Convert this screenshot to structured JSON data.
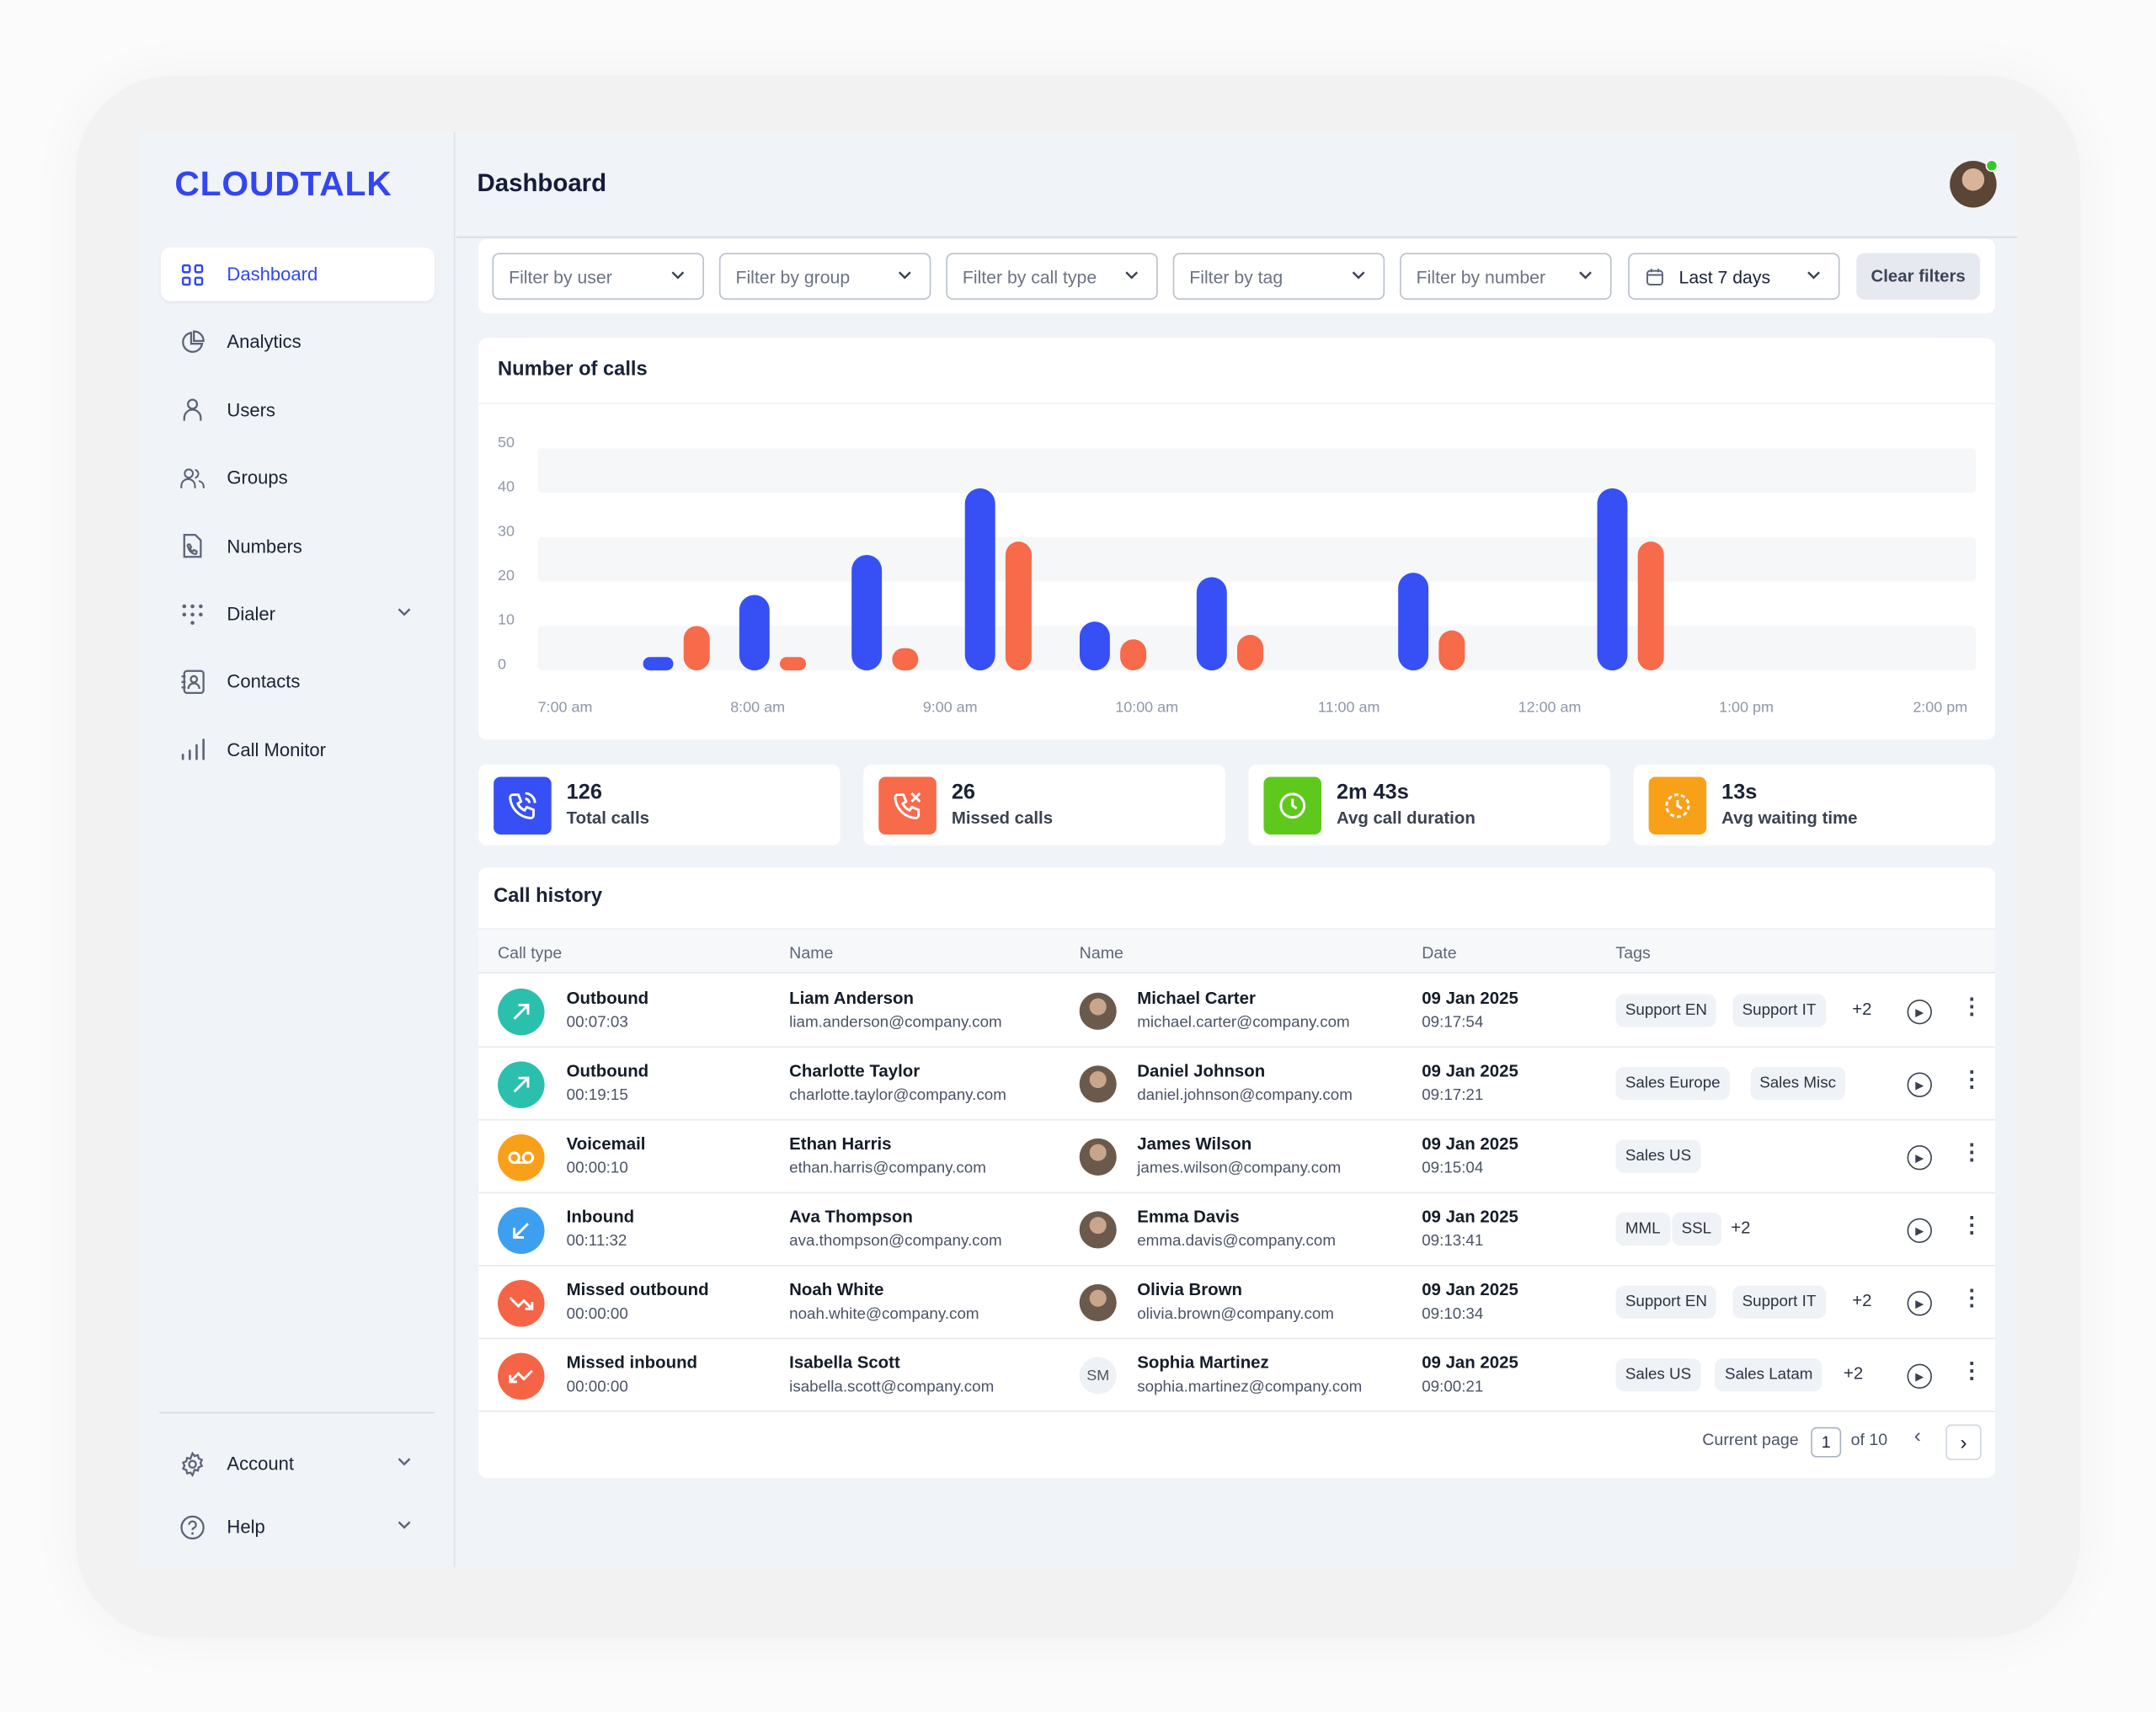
{
  "app": {
    "logo": "CLOUDTALK",
    "page_title": "Dashboard",
    "user_online": true
  },
  "sidebar": {
    "items": [
      {
        "label": "Dashboard",
        "icon": "grid-icon",
        "active": true
      },
      {
        "label": "Analytics",
        "icon": "pie-chart-icon"
      },
      {
        "label": "Users",
        "icon": "user-icon"
      },
      {
        "label": "Groups",
        "icon": "users-icon"
      },
      {
        "label": "Numbers",
        "icon": "phone-document-icon"
      },
      {
        "label": "Dialer",
        "icon": "dialpad-icon",
        "expandable": true
      },
      {
        "label": "Contacts",
        "icon": "contact-book-icon"
      },
      {
        "label": "Call Monitor",
        "icon": "bar-signal-icon"
      }
    ],
    "bottom": [
      {
        "label": "Account",
        "icon": "gear-icon",
        "expandable": true
      },
      {
        "label": "Help",
        "icon": "help-circle-icon",
        "expandable": true
      }
    ]
  },
  "filters": {
    "selects": [
      "Filter by user",
      "Filter by group",
      "Filter by call type",
      "Filter by tag",
      "Filter by number"
    ],
    "date_range": "Last 7 days",
    "clear_label": "Clear filters"
  },
  "chart_data": {
    "type": "bar",
    "title": "Number of calls",
    "x_tick_labels": [
      "7:00 am",
      "8:00 am",
      "9:00 am",
      "10:00 am",
      "11:00 am",
      "12:00 am",
      "1:00 pm",
      "2:00 pm"
    ],
    "x": [
      "7:35",
      "8:05",
      "8:40",
      "9:15",
      "9:50",
      "10:25",
      "11:25",
      "12:25"
    ],
    "series": [
      {
        "values": [
          3,
          17,
          26,
          41,
          11,
          21,
          22,
          41
        ],
        "color": "#3650f5"
      },
      {
        "values": [
          10,
          3,
          5,
          29,
          7,
          8,
          9,
          29
        ],
        "color": "#f76a4a"
      }
    ],
    "y_ticks": [
      0,
      10,
      20,
      30,
      40,
      50
    ],
    "ylim": [
      0,
      50
    ],
    "grid": "alternating bands"
  },
  "stats": [
    {
      "value": "126",
      "label": "Total calls",
      "icon": "phone-call-icon",
      "color": "#3650f5"
    },
    {
      "value": "26",
      "label": "Missed calls",
      "icon": "phone-missed-icon",
      "color": "#f76a4a"
    },
    {
      "value": "2m 43s",
      "label": "Avg call duration",
      "icon": "clock-icon",
      "color": "#5ec91c"
    },
    {
      "value": "13s",
      "label": "Avg waiting time",
      "icon": "timer-icon",
      "color": "#f9a019"
    }
  ],
  "history": {
    "title": "Call history",
    "columns": [
      "Call type",
      "Name",
      "Name",
      "Date",
      "Tags"
    ],
    "rows": [
      {
        "type": "Outbound",
        "duration": "00:07:03",
        "type_color": "#2bbfae",
        "type_icon": "arrow-up-right-icon",
        "agent": "Liam Anderson",
        "agent_email": "liam.anderson@company.com",
        "contact": "Michael Carter",
        "contact_email": "michael.carter@company.com",
        "date": "09 Jan 2025",
        "time": "09:17:54",
        "tags": [
          "Support EN",
          "Support IT"
        ],
        "more": "+2"
      },
      {
        "type": "Outbound",
        "duration": "00:19:15",
        "type_color": "#2bbfae",
        "type_icon": "arrow-up-right-icon",
        "agent": "Charlotte Taylor",
        "agent_email": "charlotte.taylor@company.com",
        "contact": "Daniel Johnson",
        "contact_email": "daniel.johnson@company.com",
        "date": "09 Jan 2025",
        "time": "09:17:21",
        "tags": [
          "Sales Europe",
          "Sales Misc"
        ]
      },
      {
        "type": "Voicemail",
        "duration": "00:00:10",
        "type_color": "#f9a01b",
        "type_icon": "voicemail-icon",
        "agent": "Ethan Harris",
        "agent_email": "ethan.harris@company.com",
        "contact": "James Wilson",
        "contact_email": "james.wilson@company.com",
        "date": "09 Jan 2025",
        "time": "09:15:04",
        "tags": [
          "Sales US"
        ]
      },
      {
        "type": "Inbound",
        "duration": "00:11:32",
        "type_color": "#3d9ff0",
        "type_icon": "arrow-down-left-icon",
        "agent": "Ava Thompson",
        "agent_email": "ava.thompson@company.com",
        "contact": "Emma Davis",
        "contact_email": "emma.davis@company.com",
        "date": "09 Jan 2025",
        "time": "09:13:41",
        "tags": [
          "MML",
          "SSL"
        ],
        "more": "+2"
      },
      {
        "type": "Missed outbound",
        "duration": "00:00:00",
        "type_color": "#f56447",
        "type_icon": "missed-outbound-icon",
        "agent": "Noah White",
        "agent_email": "noah.white@company.com",
        "contact": "Olivia Brown",
        "contact_email": "olivia.brown@company.com",
        "date": "09 Jan 2025",
        "time": "09:10:34",
        "tags": [
          "Support EN",
          "Support IT"
        ],
        "more": "+2"
      },
      {
        "type": "Missed inbound",
        "duration": "00:00:00",
        "type_color": "#f56447",
        "type_icon": "missed-inbound-icon",
        "agent": "Isabella Scott",
        "agent_email": "isabella.scott@company.com",
        "contact": "Sophia Martinez",
        "contact_initials": "SM",
        "contact_email": "sophia.martinez@company.com",
        "date": "09 Jan 2025",
        "time": "09:00:21",
        "tags": [
          "Sales US",
          "Sales Latam"
        ],
        "more": "+2"
      }
    ],
    "pagination": {
      "label": "Current page",
      "current": "1",
      "total": "of 10"
    }
  }
}
